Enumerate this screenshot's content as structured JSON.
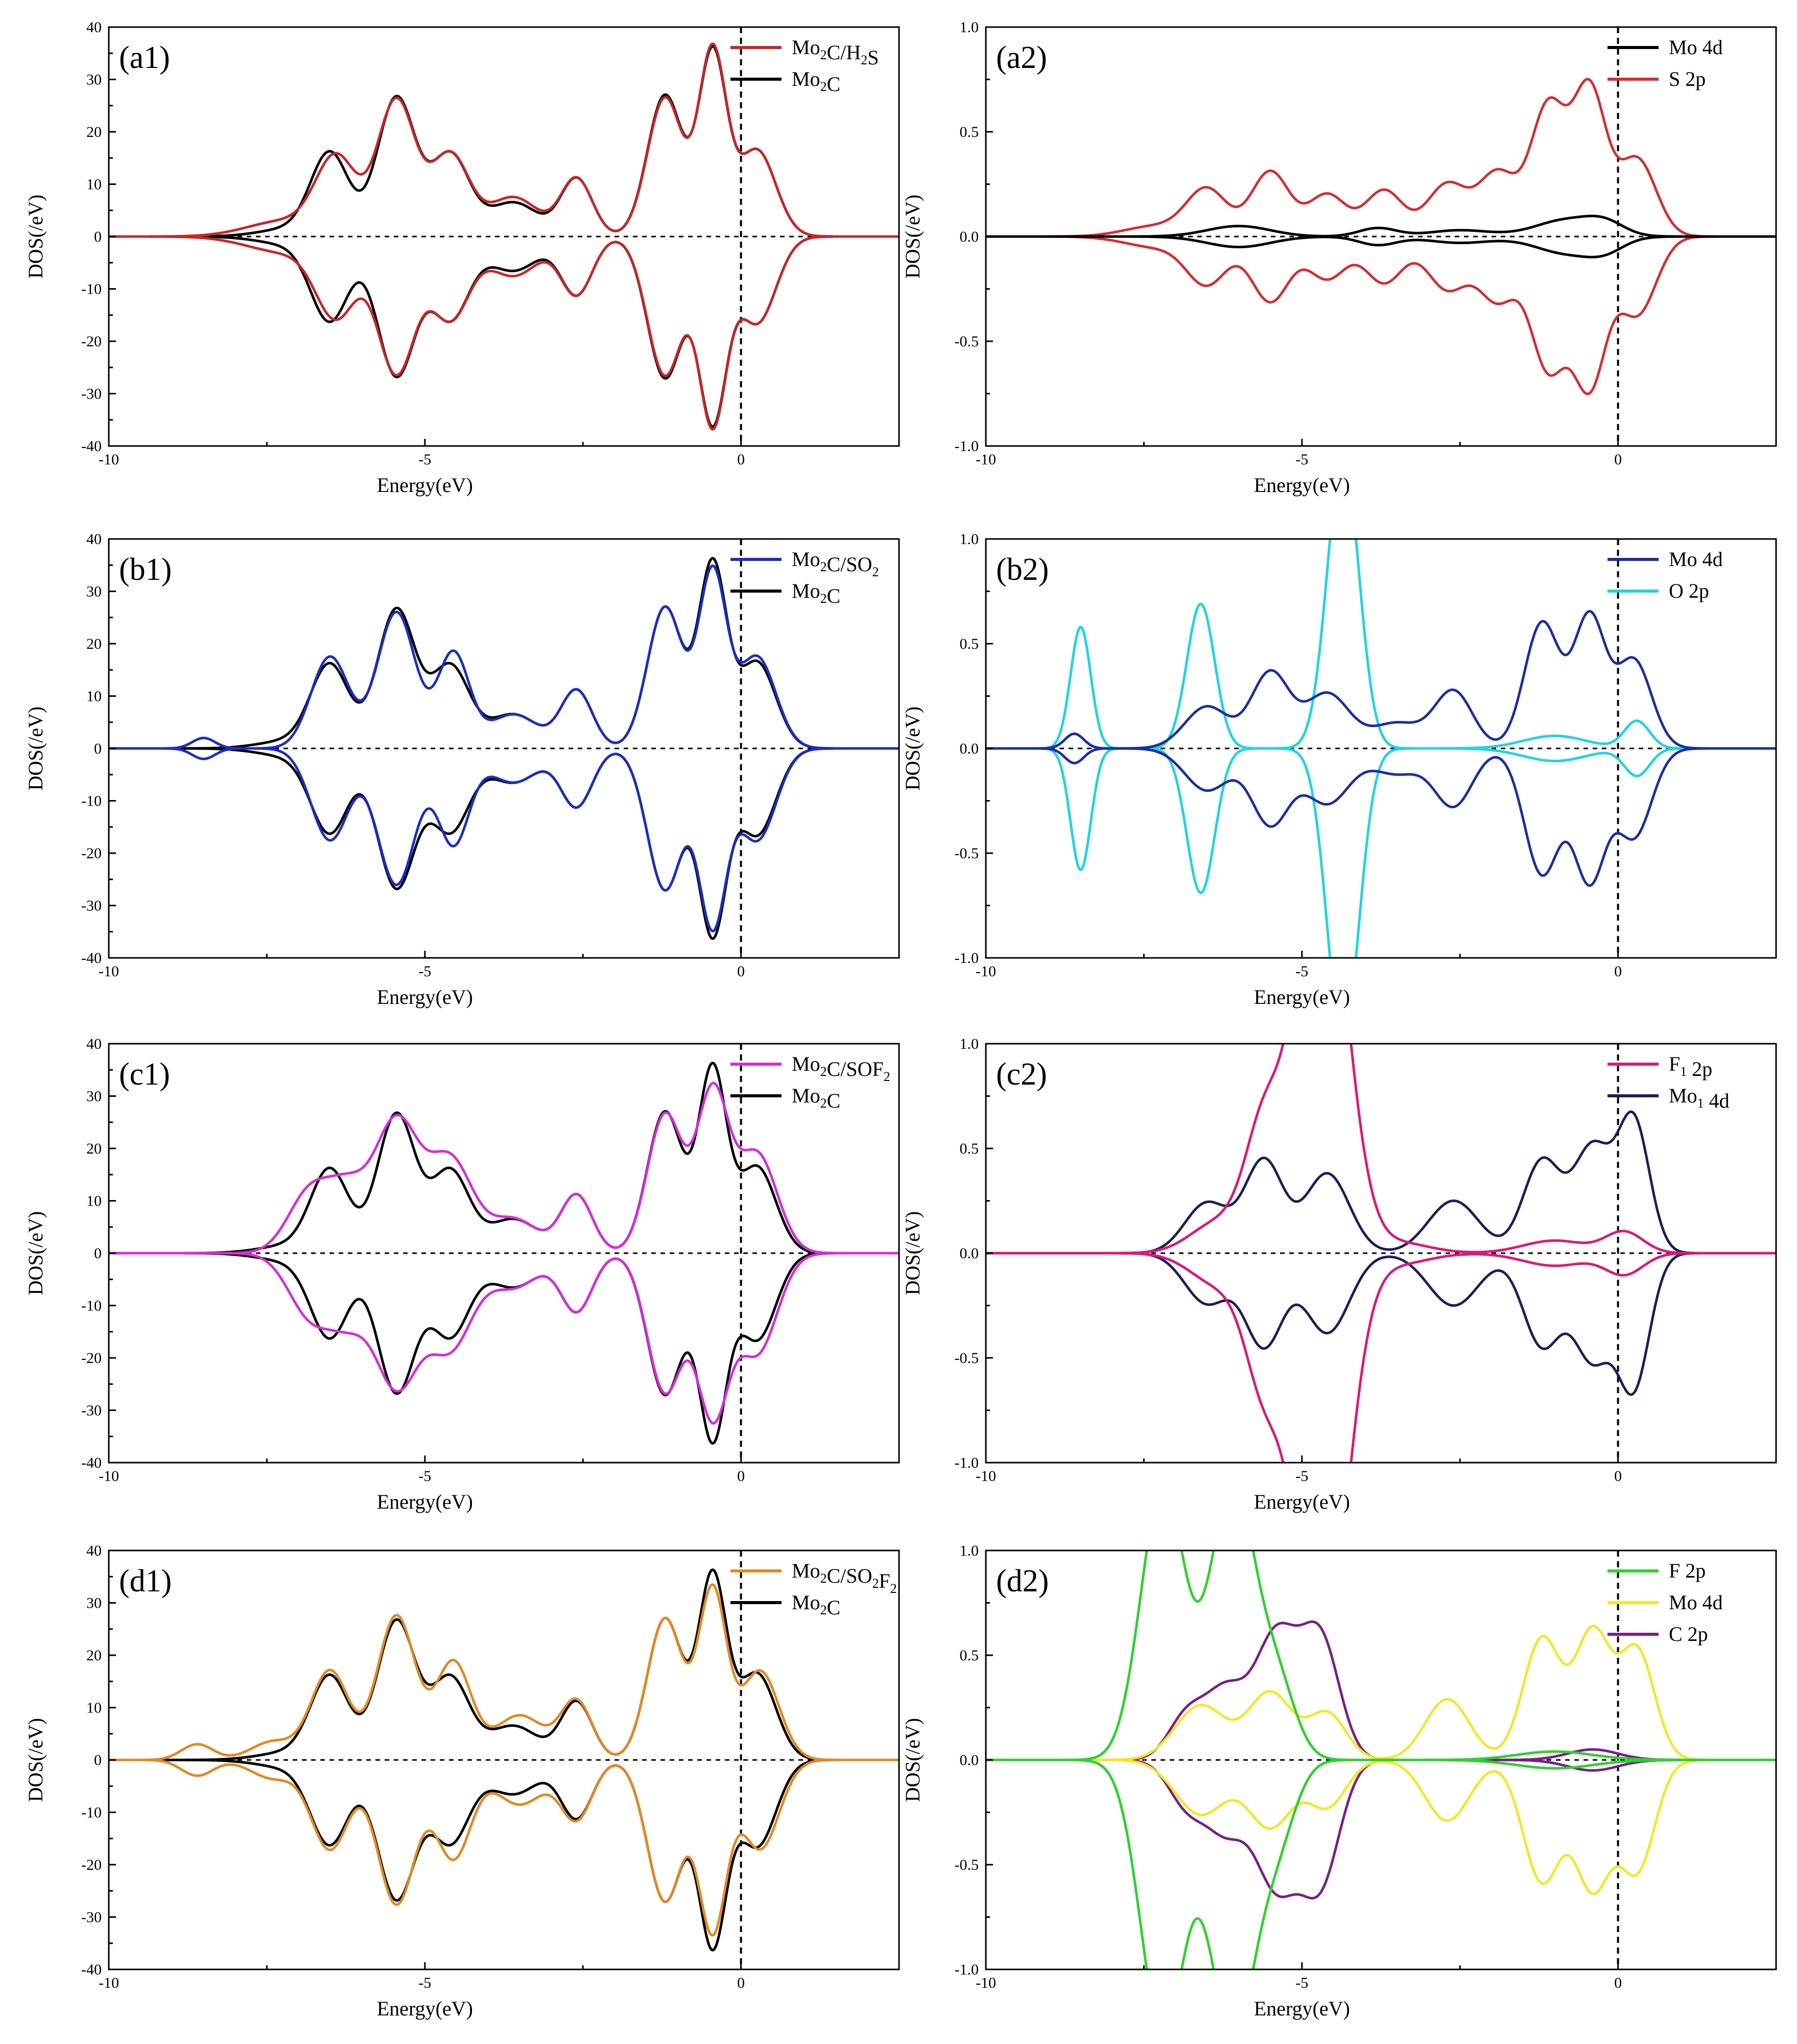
{
  "chart_data": [
    {
      "id": "a1",
      "panel_label": "(a1)",
      "type": "line",
      "xlabel": "Energy(eV)",
      "ylabel": "DOS(/eV)",
      "xlim": [
        -10,
        2.5
      ],
      "ylim": [
        -40,
        40
      ],
      "xticks": [
        -10,
        -5,
        0
      ],
      "yticks": [
        -40,
        -30,
        -20,
        -10,
        0,
        10,
        20,
        30,
        40
      ],
      "fermi_level": 0,
      "series": [
        {
          "name": "Mo2C/H2S",
          "label_main": "Mo",
          "label_sub": "2",
          "label_rest": "C/H",
          "label_sub2": "2",
          "label_rest2": "S",
          "color": "#c62828",
          "peaks": [
            [
              -7.2,
              3.0,
              0.6
            ],
            [
              -6.4,
              14.5,
              0.32
            ],
            [
              -5.45,
              26,
              0.3
            ],
            [
              -4.6,
              15.5,
              0.3
            ],
            [
              -3.6,
              7.5,
              0.4
            ],
            [
              -2.6,
              11,
              0.25
            ],
            [
              -1.2,
              26.5,
              0.28
            ],
            [
              -0.45,
              35,
              0.22
            ],
            [
              0.25,
              16.5,
              0.3
            ]
          ]
        },
        {
          "name": "Mo2C",
          "label_main": "Mo",
          "label_sub": "2",
          "label_rest": "C",
          "color": "#000000",
          "peaks": [
            [
              -7.1,
              1.5,
              0.5
            ],
            [
              -6.5,
              15.5,
              0.3
            ],
            [
              -5.45,
              26.5,
              0.3
            ],
            [
              -4.6,
              15.5,
              0.3
            ],
            [
              -3.6,
              6.5,
              0.4
            ],
            [
              -2.6,
              11,
              0.25
            ],
            [
              -1.2,
              27,
              0.28
            ],
            [
              -0.45,
              34.5,
              0.22
            ],
            [
              0.25,
              16.5,
              0.3
            ]
          ]
        }
      ]
    },
    {
      "id": "a2",
      "panel_label": "(a2)",
      "type": "line",
      "xlabel": "Energy(eV)",
      "ylabel": "DOS(/eV)",
      "xlim": [
        -10,
        2.5
      ],
      "ylim": [
        -1.0,
        1.0
      ],
      "xticks": [
        -10,
        -5,
        0
      ],
      "yticks": [
        -1.0,
        -0.5,
        0.0,
        0.5,
        1.0
      ],
      "fermi_level": 0,
      "series": [
        {
          "name": "Mo 4d",
          "color": "#000000",
          "peaks": [
            [
              -6.0,
              0.05,
              0.5
            ],
            [
              -3.8,
              0.04,
              0.3
            ],
            [
              -2.5,
              0.03,
              0.5
            ],
            [
              -0.8,
              0.08,
              0.5
            ],
            [
              -0.2,
              0.05,
              0.3
            ]
          ]
        },
        {
          "name": "S 2p",
          "color": "#d32f2f",
          "peaks": [
            [
              -7.3,
              0.05,
              0.5
            ],
            [
              -6.5,
              0.22,
              0.32
            ],
            [
              -5.5,
              0.31,
              0.3
            ],
            [
              -4.6,
              0.2,
              0.3
            ],
            [
              -3.7,
              0.22,
              0.3
            ],
            [
              -2.7,
              0.25,
              0.32
            ],
            [
              -1.9,
              0.3,
              0.3
            ],
            [
              -1.1,
              0.62,
              0.28
            ],
            [
              -0.45,
              0.69,
              0.26
            ],
            [
              0.3,
              0.37,
              0.3
            ]
          ]
        }
      ]
    },
    {
      "id": "b1",
      "panel_label": "(b1)",
      "type": "line",
      "xlabel": "Energy(eV)",
      "ylabel": "DOS(/eV)",
      "xlim": [
        -10,
        2.5
      ],
      "ylim": [
        -40,
        40
      ],
      "xticks": [
        -10,
        -5,
        0
      ],
      "yticks": [
        -40,
        -30,
        -20,
        -10,
        0,
        10,
        20,
        30,
        40
      ],
      "fermi_level": 0,
      "series": [
        {
          "name": "Mo2C/SO2",
          "label_main": "Mo",
          "label_sub": "2",
          "label_rest": "C/SO",
          "label_sub2": "2",
          "label_rest2": "",
          "color": "#1a2fbf",
          "peaks": [
            [
              -8.5,
              2.0,
              0.18
            ],
            [
              -6.5,
              17.5,
              0.3
            ],
            [
              -5.45,
              26,
              0.3
            ],
            [
              -4.55,
              18,
              0.25
            ],
            [
              -3.6,
              6.5,
              0.4
            ],
            [
              -2.6,
              11,
              0.25
            ],
            [
              -1.2,
              27,
              0.28
            ],
            [
              -0.45,
              33,
              0.22
            ],
            [
              0.25,
              17.5,
              0.3
            ]
          ]
        },
        {
          "name": "Mo2C",
          "label_main": "Mo",
          "label_sub": "2",
          "label_rest": "C",
          "color": "#000000",
          "peaks": [
            [
              -7.1,
              1.5,
              0.5
            ],
            [
              -6.5,
              15.5,
              0.3
            ],
            [
              -5.45,
              26.5,
              0.3
            ],
            [
              -4.6,
              15.5,
              0.3
            ],
            [
              -3.6,
              6.5,
              0.4
            ],
            [
              -2.6,
              11,
              0.25
            ],
            [
              -1.2,
              27,
              0.28
            ],
            [
              -0.45,
              34.5,
              0.22
            ],
            [
              0.25,
              16.5,
              0.3
            ]
          ]
        }
      ]
    },
    {
      "id": "b2",
      "panel_label": "(b2)",
      "type": "line",
      "xlabel": "Energy(eV)",
      "ylabel": "DOS(/eV)",
      "xlim": [
        -10,
        2.5
      ],
      "ylim": [
        -1.0,
        1.0
      ],
      "xticks": [
        -10,
        -5,
        0
      ],
      "yticks": [
        -1.0,
        -0.5,
        0.0,
        0.5,
        1.0
      ],
      "fermi_level": 0,
      "series": [
        {
          "name": "Mo 4d",
          "color": "#1a2fa0",
          "peaks": [
            [
              -8.6,
              0.07,
              0.15
            ],
            [
              -6.5,
              0.2,
              0.35
            ],
            [
              -5.5,
              0.36,
              0.3
            ],
            [
              -4.6,
              0.26,
              0.35
            ],
            [
              -3.5,
              0.12,
              0.4
            ],
            [
              -2.6,
              0.27,
              0.3
            ],
            [
              -1.2,
              0.6,
              0.28
            ],
            [
              -0.45,
              0.62,
              0.25
            ],
            [
              0.25,
              0.42,
              0.28
            ]
          ]
        },
        {
          "name": "O 2p",
          "color": "#22d3e0",
          "peaks": [
            [
              -8.5,
              0.58,
              0.16
            ],
            [
              -6.6,
              0.69,
              0.22
            ],
            [
              -4.35,
              1.4,
              0.25
            ],
            [
              -1.0,
              0.06,
              0.5
            ],
            [
              0.3,
              0.13,
              0.2
            ]
          ]
        }
      ]
    },
    {
      "id": "c1",
      "panel_label": "(c1)",
      "type": "line",
      "xlabel": "Energy(eV)",
      "ylabel": "DOS(/eV)",
      "xlim": [
        -10,
        2.5
      ],
      "ylim": [
        -40,
        40
      ],
      "xticks": [
        -10,
        -5,
        0
      ],
      "yticks": [
        -40,
        -30,
        -20,
        -10,
        0,
        10,
        20,
        30,
        40
      ],
      "fermi_level": 0,
      "series": [
        {
          "name": "Mo2C/SOF2",
          "label_main": "Mo",
          "label_sub": "2",
          "label_rest": "C/SOF",
          "label_sub2": "2",
          "label_rest2": "",
          "color": "#d42fd8",
          "peaks": [
            [
              -6.8,
              12,
              0.35
            ],
            [
              -6.2,
              10,
              0.3
            ],
            [
              -5.45,
              25,
              0.35
            ],
            [
              -4.6,
              17.5,
              0.35
            ],
            [
              -3.6,
              6.5,
              0.4
            ],
            [
              -2.6,
              11,
              0.25
            ],
            [
              -1.2,
              26.5,
              0.28
            ],
            [
              -0.45,
              30,
              0.25
            ],
            [
              0.25,
              19,
              0.32
            ]
          ]
        },
        {
          "name": "Mo2C",
          "label_main": "Mo",
          "label_sub": "2",
          "label_rest": "C",
          "color": "#000000",
          "peaks": [
            [
              -7.1,
              1.5,
              0.5
            ],
            [
              -6.5,
              15.5,
              0.3
            ],
            [
              -5.45,
              26.5,
              0.3
            ],
            [
              -4.6,
              15.5,
              0.3
            ],
            [
              -3.6,
              6.5,
              0.4
            ],
            [
              -2.6,
              11,
              0.25
            ],
            [
              -1.2,
              27,
              0.28
            ],
            [
              -0.45,
              34.5,
              0.22
            ],
            [
              0.25,
              16.5,
              0.3
            ]
          ]
        }
      ]
    },
    {
      "id": "c2",
      "panel_label": "(c2)",
      "type": "line",
      "xlabel": "Energy(eV)",
      "ylabel": "DOS(/eV)",
      "xlim": [
        -10,
        2.5
      ],
      "ylim": [
        -1.0,
        1.0
      ],
      "xticks": [
        -10,
        -5,
        0
      ],
      "yticks": [
        -1.0,
        -0.5,
        0.0,
        0.5,
        1.0
      ],
      "fermi_level": 0,
      "series": [
        {
          "name": "F1 2p",
          "label_main": "F",
          "label_sub": "1",
          "label_rest": " 2p",
          "color": "#d81b78",
          "peaks": [
            [
              -6.3,
              0.15,
              0.45
            ],
            [
              -5.6,
              0.55,
              0.3
            ],
            [
              -4.7,
              2.0,
              0.4
            ],
            [
              -3.5,
              0.05,
              0.5
            ],
            [
              -1.0,
              0.06,
              0.5
            ],
            [
              0.1,
              0.1,
              0.3
            ]
          ]
        },
        {
          "name": "Mo1 4d",
          "label_main": "Mo",
          "label_sub": "1",
          "label_rest": " 4d",
          "color": "#1a1f5a",
          "peaks": [
            [
              -6.5,
              0.24,
              0.35
            ],
            [
              -5.6,
              0.44,
              0.3
            ],
            [
              -4.6,
              0.38,
              0.35
            ],
            [
              -2.6,
              0.25,
              0.4
            ],
            [
              -1.2,
              0.44,
              0.3
            ],
            [
              -0.4,
              0.5,
              0.3
            ],
            [
              0.25,
              0.62,
              0.25
            ]
          ]
        }
      ]
    },
    {
      "id": "d1",
      "panel_label": "(d1)",
      "type": "line",
      "xlabel": "Energy(eV)",
      "ylabel": "DOS(/eV)",
      "xlim": [
        -10,
        2.5
      ],
      "ylim": [
        -40,
        40
      ],
      "xticks": [
        -10,
        -5,
        0
      ],
      "yticks": [
        -40,
        -30,
        -20,
        -10,
        0,
        10,
        20,
        30,
        40
      ],
      "fermi_level": 0,
      "series": [
        {
          "name": "Mo2C/SO2F2",
          "label_main": "Mo",
          "label_sub": "2",
          "label_rest": "C/SO",
          "label_sub2": "2",
          "label_rest2": "F",
          "label_sub3": "2",
          "color": "#e08a24",
          "peaks": [
            [
              -8.6,
              3.0,
              0.25
            ],
            [
              -7.4,
              3.5,
              0.35
            ],
            [
              -6.5,
              17,
              0.3
            ],
            [
              -5.45,
              27.5,
              0.3
            ],
            [
              -4.55,
              18.5,
              0.28
            ],
            [
              -3.5,
              8.5,
              0.4
            ],
            [
              -2.6,
              11,
              0.25
            ],
            [
              -1.2,
              27,
              0.28
            ],
            [
              -0.45,
              32,
              0.22
            ],
            [
              0.3,
              17,
              0.3
            ]
          ]
        },
        {
          "name": "Mo2C",
          "label_main": "Mo",
          "label_sub": "2",
          "label_rest": "C",
          "color": "#000000",
          "peaks": [
            [
              -7.1,
              1.5,
              0.5
            ],
            [
              -6.5,
              15.5,
              0.3
            ],
            [
              -5.45,
              26.5,
              0.3
            ],
            [
              -4.6,
              15.5,
              0.3
            ],
            [
              -3.6,
              6.5,
              0.4
            ],
            [
              -2.6,
              11,
              0.25
            ],
            [
              -1.2,
              27,
              0.28
            ],
            [
              -0.45,
              34.5,
              0.22
            ],
            [
              0.25,
              16.5,
              0.3
            ]
          ]
        }
      ]
    },
    {
      "id": "d2",
      "panel_label": "(d2)",
      "type": "line",
      "xlabel": "Energy(eV)",
      "ylabel": "DOS(/eV)",
      "xlim": [
        -10,
        2.5
      ],
      "ylim": [
        -1.0,
        1.0
      ],
      "xticks": [
        -10,
        -5,
        0
      ],
      "yticks": [
        -1.0,
        -0.5,
        0.0,
        0.5,
        1.0
      ],
      "fermi_level": 0,
      "series": [
        {
          "name": "F 2p",
          "color": "#2fd12f",
          "peaks": [
            [
              -7.2,
              1.3,
              0.35
            ],
            [
              -6.1,
              1.3,
              0.35
            ],
            [
              -5.4,
              0.35,
              0.3
            ],
            [
              -1.0,
              0.04,
              0.6
            ]
          ]
        },
        {
          "name": "Mo 4d",
          "color": "#f2e82a",
          "peaks": [
            [
              -6.6,
              0.26,
              0.4
            ],
            [
              -5.5,
              0.32,
              0.35
            ],
            [
              -4.6,
              0.22,
              0.3
            ],
            [
              -2.7,
              0.29,
              0.35
            ],
            [
              -1.2,
              0.58,
              0.3
            ],
            [
              -0.4,
              0.6,
              0.28
            ],
            [
              0.3,
              0.52,
              0.28
            ]
          ]
        },
        {
          "name": "C 2p",
          "color": "#7a1f86",
          "peaks": [
            [
              -6.8,
              0.22,
              0.3
            ],
            [
              -6.2,
              0.3,
              0.3
            ],
            [
              -5.4,
              0.6,
              0.35
            ],
            [
              -4.7,
              0.55,
              0.3
            ],
            [
              -0.4,
              0.05,
              0.4
            ]
          ]
        }
      ]
    }
  ]
}
